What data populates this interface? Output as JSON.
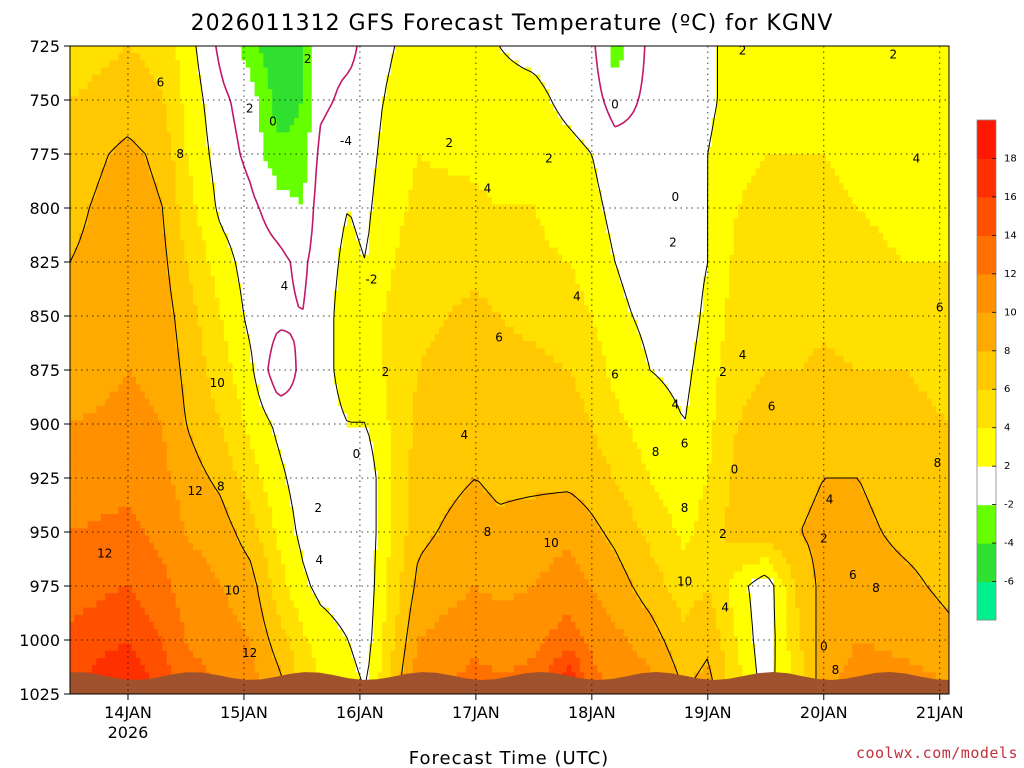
{
  "chart_data": {
    "type": "heatmap",
    "subtype": "time-height filled contour",
    "title": "2026011312 GFS Forecast Temperature (ºC) for KGNV",
    "xlabel": "Forecast Time (UTC)",
    "ylabel": "",
    "credit": "coolwx.com/models",
    "y_axis": {
      "reversed": true,
      "ticks": [
        725,
        750,
        775,
        800,
        825,
        850,
        875,
        900,
        925,
        950,
        975,
        1000,
        1025
      ],
      "range": [
        725,
        1025
      ]
    },
    "x_axis": {
      "range_days": [
        0,
        7.58
      ],
      "ticks": [
        {
          "label": "14JAN",
          "sub": "2026",
          "day": 0.5
        },
        {
          "label": "15JAN",
          "sub": "",
          "day": 1.5
        },
        {
          "label": "16JAN",
          "sub": "",
          "day": 2.5
        },
        {
          "label": "17JAN",
          "sub": "",
          "day": 3.5
        },
        {
          "label": "18JAN",
          "sub": "",
          "day": 4.5
        },
        {
          "label": "19JAN",
          "sub": "",
          "day": 5.5
        },
        {
          "label": "20JAN",
          "sub": "",
          "day": 6.5
        },
        {
          "label": "21JAN",
          "sub": "",
          "day": 7.5
        }
      ]
    },
    "colorbar": {
      "levels": [
        -8,
        -6,
        -4,
        -2,
        2,
        4,
        6,
        8,
        10,
        12,
        14,
        16,
        18,
        20
      ],
      "colors": [
        "#00f090",
        "#30e030",
        "#66ff00",
        "#ffffff",
        "#ffff00",
        "#ffe000",
        "#ffc800",
        "#ffaa00",
        "#ff9000",
        "#ff7000",
        "#ff5000",
        "#ff3000",
        "#ff1800"
      ],
      "labels": [
        -6,
        -4,
        -2,
        2,
        4,
        6,
        8,
        10,
        12,
        14,
        16,
        18
      ]
    },
    "zero_line_color": "#c0186a",
    "terrain_color": "#a0522d",
    "approx_temperatures": {
      "description": "Approximate GFS temperatures (ºC) read from shaded contours at each column day and pressure level",
      "days": [
        0.0,
        0.5,
        0.8,
        1.0,
        1.3,
        1.55,
        1.8,
        2.0,
        2.15,
        2.4,
        2.55,
        2.7,
        3.0,
        3.5,
        3.7,
        4.0,
        4.3,
        4.5,
        4.7,
        5.0,
        5.3,
        5.5,
        5.75,
        6.0,
        6.3,
        6.5,
        6.8,
        7.2,
        7.58
      ],
      "levels": [
        725,
        750,
        775,
        800,
        825,
        850,
        875,
        900,
        925,
        950,
        975,
        1000,
        1025
      ],
      "rows": [
        [
          5,
          6,
          5.5,
          3,
          -0.5,
          -3,
          -6,
          -4,
          -0.5,
          -0.5,
          0.5,
          1.5,
          3,
          2.5,
          2,
          1.5,
          1,
          0.5,
          -3,
          0.5,
          1,
          1.5,
          3,
          3,
          3.5,
          3,
          2,
          2.5,
          2.5
        ],
        [
          6,
          7,
          6,
          3.5,
          0.5,
          -1,
          -5,
          -4,
          -0.5,
          0.5,
          0.5,
          2,
          3.5,
          3,
          2.5,
          2.5,
          1.5,
          1,
          -1,
          0.5,
          1,
          1.5,
          3,
          3.5,
          3.5,
          3,
          2.5,
          2.5,
          2.5
        ],
        [
          7,
          8.5,
          7.5,
          4,
          1,
          -0.5,
          -3.5,
          -3.5,
          0.5,
          1.5,
          1,
          2.5,
          4,
          3.5,
          3,
          3,
          2.5,
          2,
          1,
          0.5,
          1,
          2,
          3.5,
          4,
          4,
          4,
          3.5,
          3,
          3
        ],
        [
          7.5,
          9,
          8,
          5,
          1.5,
          0.5,
          -1,
          -2,
          1,
          2,
          1.5,
          3,
          4.5,
          4.5,
          4,
          4,
          3,
          2.5,
          1.5,
          0.5,
          1,
          2,
          4,
          4.5,
          4.5,
          4.5,
          4,
          3.5,
          3.5
        ],
        [
          8,
          9,
          8.5,
          6,
          3,
          1,
          0.5,
          -0.5,
          1,
          2.5,
          2,
          3.5,
          5,
          5.5,
          5,
          4.5,
          4,
          3,
          2,
          1,
          1,
          2,
          4.5,
          5,
          5,
          5,
          4.5,
          4,
          4
        ],
        [
          8.5,
          9.5,
          9,
          7,
          4,
          1.5,
          0.5,
          0,
          1,
          3,
          2.5,
          4,
          5.5,
          6.5,
          6,
          5.5,
          5,
          4,
          2.5,
          1.5,
          1,
          2.5,
          5,
          5.5,
          5.5,
          5.5,
          5,
          5,
          5
        ],
        [
          9,
          10,
          9.5,
          7.5,
          5,
          2.5,
          -1.5,
          0.5,
          1.5,
          2.5,
          2.5,
          4,
          6,
          7,
          6.5,
          6.5,
          6,
          5,
          3.5,
          2,
          1.5,
          3,
          5.5,
          6,
          6,
          6.5,
          6,
          6,
          5.5
        ],
        [
          10,
          10.5,
          10,
          8,
          6,
          3.5,
          1.5,
          0.5,
          1.5,
          2,
          2,
          3.5,
          6.5,
          7.5,
          7,
          7,
          7,
          6,
          4.5,
          3,
          2,
          3.5,
          6,
          6.5,
          6.5,
          7,
          7,
          6.5,
          6
        ],
        [
          11,
          11.5,
          10.5,
          9,
          7.5,
          5,
          2.5,
          1,
          0.5,
          0.5,
          0.5,
          3,
          7,
          8,
          7.5,
          7.5,
          7.5,
          7,
          6,
          4,
          2.5,
          4,
          6.5,
          7,
          7.5,
          8,
          8,
          7,
          6.5
        ],
        [
          12,
          12.5,
          11.5,
          10,
          9,
          7,
          3.5,
          1.5,
          0.5,
          0.5,
          0.5,
          3,
          7.5,
          9,
          8.5,
          9,
          9.5,
          8.5,
          7.5,
          5.5,
          3.5,
          5,
          7,
          7.5,
          8,
          8.5,
          8.5,
          7.5,
          7
        ],
        [
          13,
          14,
          12.5,
          11,
          10,
          9,
          5,
          2.5,
          1.5,
          1,
          0.5,
          3.5,
          8.5,
          10,
          9.5,
          10,
          11,
          10,
          9,
          7,
          5,
          6,
          3,
          0.5,
          7,
          8.5,
          9,
          8.5,
          7.5
        ],
        [
          14.5,
          16,
          14,
          12,
          11,
          10,
          7,
          4.5,
          3,
          2,
          1,
          4,
          10,
          11.5,
          11,
          11.5,
          13,
          11.5,
          10.5,
          9,
          6.5,
          7.5,
          4,
          0.5,
          6,
          9,
          10,
          9.5,
          8.5
        ],
        [
          16,
          18.5,
          15,
          13,
          12,
          11,
          9,
          6,
          4.5,
          3,
          2,
          5,
          11.5,
          13,
          12.5,
          13,
          19,
          13,
          12,
          11,
          8,
          9,
          5,
          1,
          5,
          9.5,
          11,
          11,
          10.5
        ]
      ]
    }
  }
}
